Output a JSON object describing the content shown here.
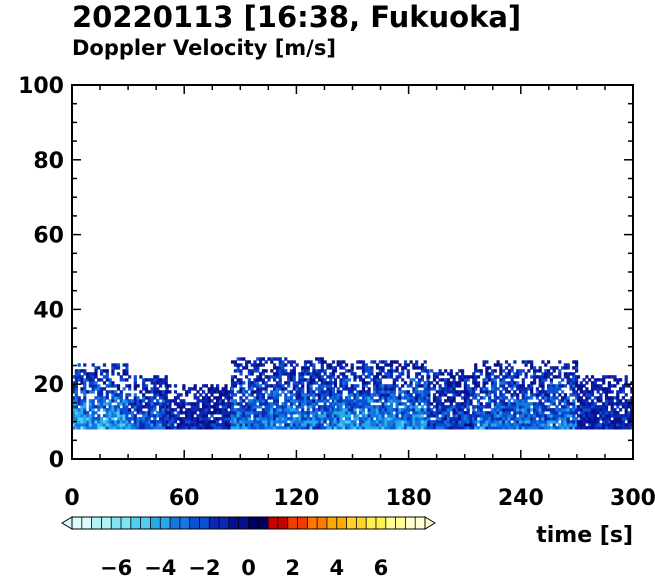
{
  "title": "20220113 [16:38, Fukuoka]",
  "subtitle": "Doppler Velocity [m/s]",
  "chart_data": {
    "type": "heatmap",
    "title": "20220113 [16:38, Fukuoka]",
    "subtitle": "Doppler Velocity [m/s]",
    "xlabel": "time [s]",
    "ylabel": "",
    "xlim": [
      0,
      300
    ],
    "ylim": [
      0,
      100
    ],
    "x_ticks": [
      "0",
      "60",
      "120",
      "180",
      "240",
      "300"
    ],
    "y_ticks": [
      "0",
      "20",
      "40",
      "60",
      "80",
      "100"
    ],
    "colorbar": {
      "range": [
        -8,
        8
      ],
      "tick_labels": [
        "−6",
        "−4",
        "−2",
        "0",
        "2",
        "4",
        "6"
      ],
      "tick_values": [
        -6,
        -4,
        -2,
        0,
        2,
        4,
        6
      ],
      "colors": [
        "#d9fbfb",
        "#b0f2f5",
        "#80e3f0",
        "#50cdf0",
        "#28aaea",
        "#1478e0",
        "#0a50d2",
        "#0a28b4",
        "#08108c",
        "#000064",
        "#c80000",
        "#f03c00",
        "#ff7800",
        "#ffaa00",
        "#ffd22d",
        "#fff050",
        "#ffff96",
        "#ffffd2"
      ],
      "extend": "both"
    },
    "echo_regions": [
      {
        "t": [
          0,
          30
        ],
        "height": [
          8,
          25
        ],
        "velocity": -4
      },
      {
        "t": [
          30,
          50
        ],
        "height": [
          8,
          22
        ],
        "velocity": -2.5
      },
      {
        "t": [
          50,
          85
        ],
        "height": [
          8,
          20
        ],
        "velocity": -1
      },
      {
        "t": [
          85,
          140
        ],
        "height": [
          8,
          27
        ],
        "velocity": -3
      },
      {
        "t": [
          140,
          190
        ],
        "height": [
          8,
          26
        ],
        "velocity": -3.5
      },
      {
        "t": [
          190,
          215
        ],
        "height": [
          8,
          24
        ],
        "velocity": -2
      },
      {
        "t": [
          215,
          270
        ],
        "height": [
          8,
          26
        ],
        "velocity": -3
      },
      {
        "t": [
          270,
          300
        ],
        "height": [
          8,
          22
        ],
        "velocity": -1
      }
    ]
  }
}
